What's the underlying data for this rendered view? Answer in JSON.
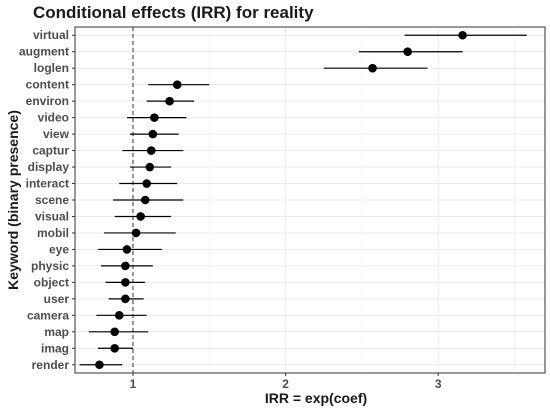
{
  "chart_data": {
    "type": "scatter",
    "title": "Conditional effects (IRR) for reality",
    "xlabel": "IRR = exp(coef)",
    "ylabel": "Keyword (binary presence)",
    "xlim": [
      0.62,
      3.7
    ],
    "xticks": [
      1,
      2,
      3
    ],
    "reference_line": 1,
    "grid": true,
    "series": [
      {
        "categories": [
          "virtual",
          "augment",
          "loglen",
          "content",
          "environ",
          "video",
          "view",
          "captur",
          "display",
          "interact",
          "scene",
          "visual",
          "mobil",
          "eye",
          "physic",
          "object",
          "user",
          "camera",
          "map",
          "imag",
          "render"
        ],
        "values": [
          3.16,
          2.8,
          2.57,
          1.29,
          1.24,
          1.14,
          1.13,
          1.12,
          1.11,
          1.09,
          1.08,
          1.05,
          1.02,
          0.96,
          0.95,
          0.95,
          0.95,
          0.91,
          0.88,
          0.88,
          0.78
        ],
        "ci_low": [
          2.78,
          2.48,
          2.25,
          1.1,
          1.09,
          0.96,
          0.98,
          0.93,
          0.98,
          0.91,
          0.87,
          0.88,
          0.81,
          0.77,
          0.79,
          0.82,
          0.84,
          0.76,
          0.71,
          0.77,
          0.65
        ],
        "ci_high": [
          3.58,
          3.16,
          2.93,
          1.5,
          1.4,
          1.35,
          1.3,
          1.33,
          1.25,
          1.29,
          1.33,
          1.25,
          1.28,
          1.19,
          1.13,
          1.08,
          1.07,
          1.09,
          1.1,
          1.0,
          0.93
        ]
      }
    ]
  }
}
